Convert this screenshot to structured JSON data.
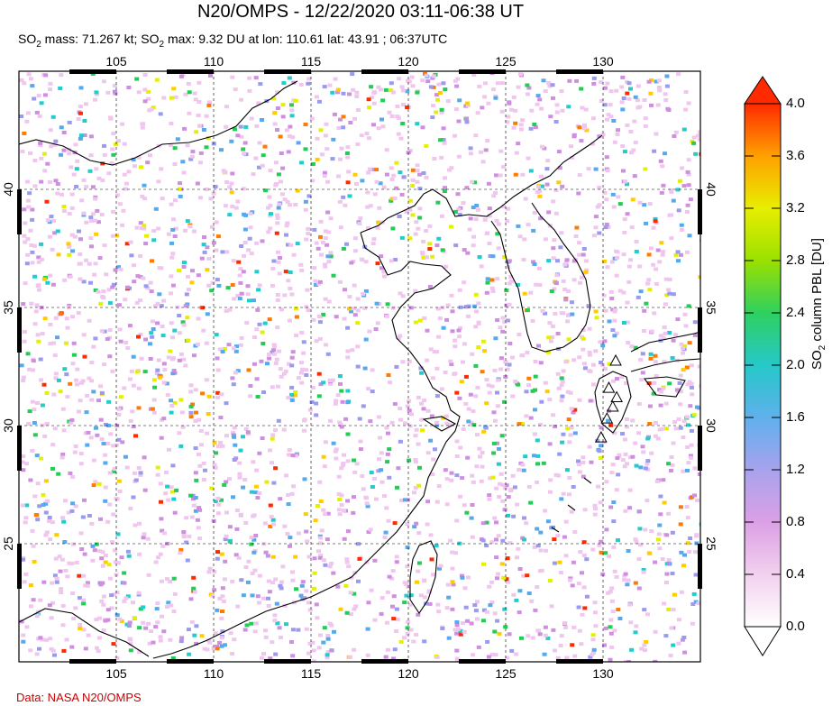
{
  "title": "N20/OMPS - 12/22/2020 03:11-06:38 UT",
  "subtitle": {
    "part1": "SO",
    "sub1": "2",
    "part2": " mass: 71.267 kt; SO",
    "sub2": "2",
    "part3": " max: 9.32 DU at lon: 110.61 lat: 43.91 ; 06:37UTC"
  },
  "map": {
    "lon_range": [
      100,
      135
    ],
    "lat_range": [
      20,
      45
    ],
    "lon_ticks": [
      "105",
      "110",
      "115",
      "120",
      "125",
      "130"
    ],
    "lat_ticks": [
      "25",
      "30",
      "35",
      "40"
    ],
    "volcano_markers": 6
  },
  "colorbar": {
    "title_main": "SO",
    "title_sub": "2",
    "title_rest": " column PBL [DU]",
    "labels": [
      "4.0",
      "3.6",
      "3.2",
      "2.8",
      "2.4",
      "2.0",
      "1.6",
      "1.2",
      "0.8",
      "0.4",
      "0.0"
    ],
    "colors": [
      "#ff2a00",
      "#ff7a00",
      "#ffcc00",
      "#e4f000",
      "#8ee200",
      "#22cc55",
      "#22cccc",
      "#55aaee",
      "#9a9aee",
      "#d08ee0",
      "#f0c6ee",
      "#ffffff"
    ]
  },
  "credit": "Data: NASA N20/OMPS"
}
